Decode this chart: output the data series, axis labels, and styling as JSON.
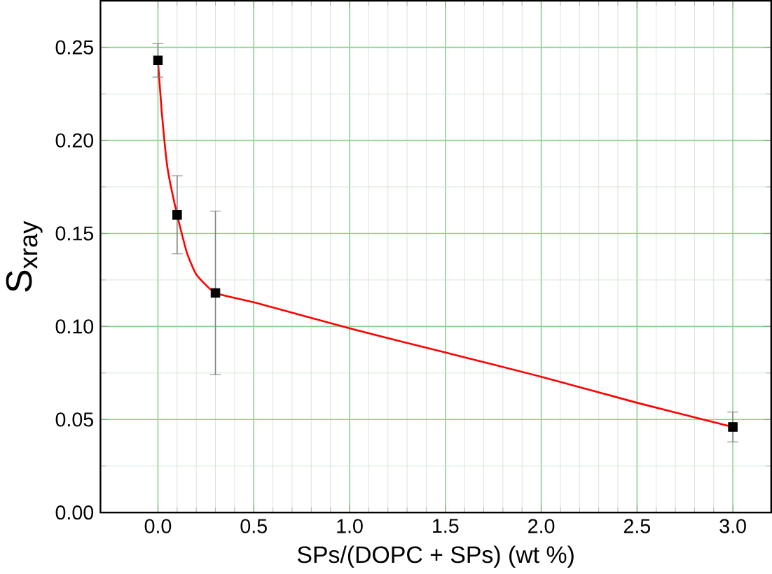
{
  "chart_data": {
    "type": "scatter",
    "xlabel": "SPs/(DOPC + SPs) (wt %)",
    "ylabel": "S$_{xray}$",
    "xlim": [
      -0.3,
      3.2
    ],
    "ylim": [
      0,
      0.275
    ],
    "xticks": [
      {
        "value": 0,
        "label": "0.0"
      },
      0.5,
      {
        "value": 1,
        "label": "1.0"
      },
      1.5,
      {
        "value": 2,
        "label": "2.0"
      },
      2.5,
      {
        "value": 3,
        "label": "3.0"
      }
    ],
    "yticks": [
      {
        "value": 0,
        "label": "0.00"
      },
      0.05,
      {
        "value": 0.1,
        "label": "0.10"
      },
      0.15,
      {
        "value": 0.2,
        "label": "0.20"
      },
      0.25
    ],
    "grid": true,
    "marker": "square",
    "series": [
      {
        "type": "line",
        "color": "#ff0000",
        "marker": "none",
        "x": [
          0,
          0.02,
          0.05,
          0.1,
          0.15,
          0.2,
          0.3,
          0.5,
          1.0,
          1.5,
          2.0,
          2.5,
          3.0
        ],
        "values": [
          0.243,
          0.215,
          0.185,
          0.16,
          0.14,
          0.128,
          0.118,
          0.113,
          0.099,
          0.086,
          0.073,
          0.059,
          0.046
        ]
      },
      {
        "color": "#000000",
        "x": [
          0,
          0.1,
          0.3,
          3.0
        ],
        "values": [
          0.243,
          0.16,
          0.118,
          0.046
        ],
        "errors": [
          0.009,
          0.021,
          0.044,
          0.008
        ]
      }
    ]
  }
}
